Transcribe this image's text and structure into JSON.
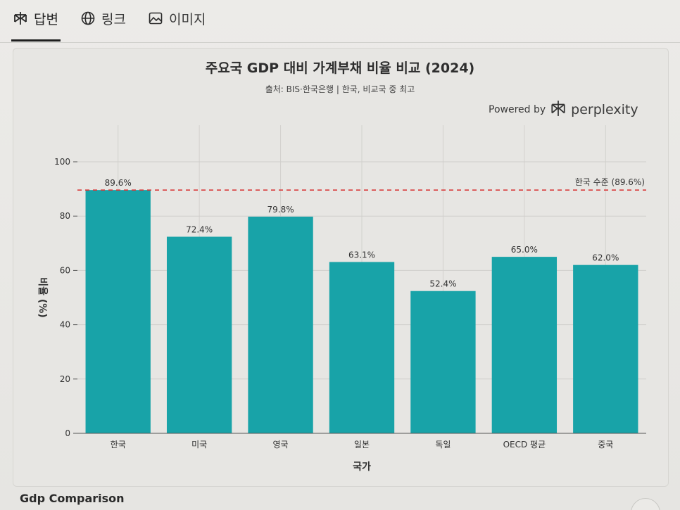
{
  "tabs": [
    {
      "label": "답변",
      "icon": "perplexity-logo-icon"
    },
    {
      "label": "링크",
      "icon": "globe-icon"
    },
    {
      "label": "이미지",
      "icon": "image-icon"
    }
  ],
  "chart_header": {
    "title": "주요국 GDP 대비 가계부채 비율 비교 (2024)",
    "subtitle": "출처: BIS·한국은행 | 한국, 비교국 중 최고",
    "powered_by": "Powered by",
    "brand": "perplexity"
  },
  "chart_data": {
    "type": "bar",
    "categories": [
      "한국",
      "미국",
      "영국",
      "일본",
      "독일",
      "OECD 평균",
      "중국"
    ],
    "values": [
      89.6,
      72.4,
      79.8,
      63.1,
      52.4,
      65.0,
      62.0
    ],
    "value_labels": [
      "89.6%",
      "72.4%",
      "79.8%",
      "63.1%",
      "52.4%",
      "65.0%",
      "62.0%"
    ],
    "xlabel": "국가",
    "ylabel": "비율 (%)",
    "ylim": [
      0,
      100
    ],
    "yticks": [
      0,
      20,
      40,
      60,
      80,
      100
    ],
    "grid": true,
    "bar_color": "#18a3a8",
    "reference_line": {
      "value": 89.6,
      "label": "한국 수준 (89.6%)",
      "color": "#d93a3a",
      "style": "dashed"
    }
  },
  "footer": {
    "section_label": "Gdp Comparison"
  }
}
